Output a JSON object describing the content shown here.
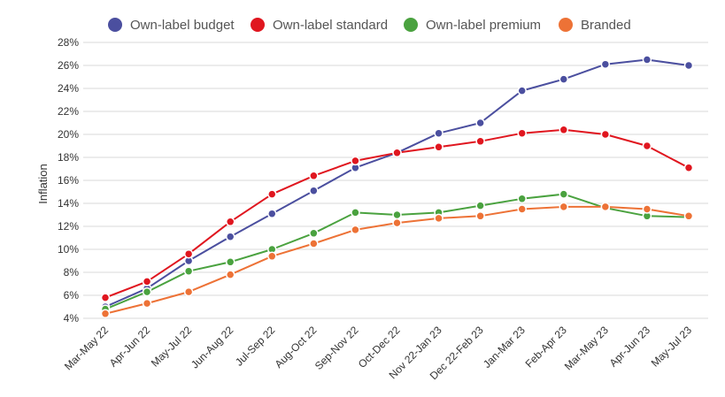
{
  "chart_data": {
    "type": "line",
    "title": "",
    "xlabel": "",
    "ylabel": "Inflation",
    "ylim": [
      4,
      28
    ],
    "y_ticks": [
      "4%",
      "6%",
      "8%",
      "10%",
      "12%",
      "14%",
      "16%",
      "18%",
      "20%",
      "22%",
      "24%",
      "26%",
      "28%"
    ],
    "y_tick_values": [
      4,
      6,
      8,
      10,
      12,
      14,
      16,
      18,
      20,
      22,
      24,
      26,
      28
    ],
    "grid": true,
    "legend_position": "top",
    "categories": [
      "Mar-May 22",
      "Apr-Jun 22",
      "May-Jul 22",
      "Jun-Aug 22",
      "Jul-Sep 22",
      "Aug-Oct 22",
      "Sep-Nov 22",
      "Oct-Dec 22",
      "Nov 22-Jan 23",
      "Dec 22-Feb 23",
      "Jan-Mar 23",
      "Feb-Apr 23",
      "Mar-May 23",
      "Apr-Jun 23",
      "May-Jul 23"
    ],
    "series": [
      {
        "name": "Own-label budget",
        "color": "#4b4f9f",
        "values": [
          5.0,
          6.6,
          9.0,
          11.1,
          13.1,
          15.1,
          17.1,
          18.4,
          20.1,
          21.0,
          23.8,
          24.8,
          26.1,
          26.5,
          26.0
        ]
      },
      {
        "name": "Own-label standard",
        "color": "#e0161f",
        "values": [
          5.8,
          7.2,
          9.6,
          12.4,
          14.8,
          16.4,
          17.7,
          18.4,
          18.9,
          19.4,
          20.1,
          20.4,
          20.0,
          19.0,
          17.1
        ]
      },
      {
        "name": "Own-label premium",
        "color": "#4aa23f",
        "values": [
          4.8,
          6.3,
          8.1,
          8.9,
          10.0,
          11.4,
          13.2,
          13.0,
          13.2,
          13.8,
          14.4,
          14.8,
          13.6,
          12.9,
          12.8
        ]
      },
      {
        "name": "Branded",
        "color": "#ed7236",
        "values": [
          4.4,
          5.3,
          6.3,
          7.8,
          9.4,
          10.5,
          11.7,
          12.3,
          12.7,
          12.9,
          13.5,
          13.7,
          13.7,
          13.5,
          12.9
        ]
      }
    ]
  }
}
